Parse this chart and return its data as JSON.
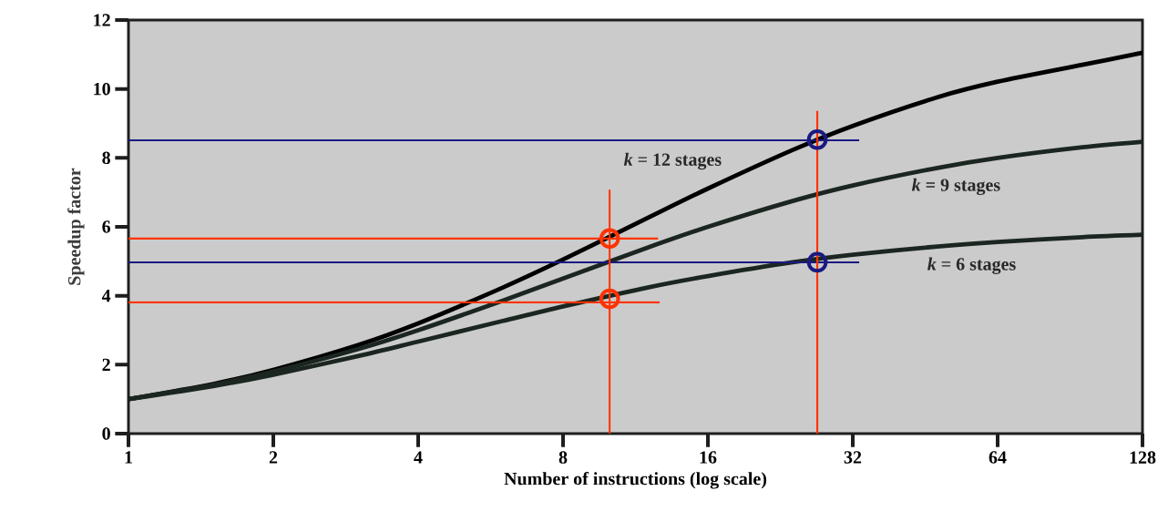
{
  "chart_data": {
    "type": "line",
    "xlabel": "Number of instructions (log scale)",
    "ylabel": "Speedup factor",
    "log": "x",
    "xlim": [
      1,
      128
    ],
    "ylim": [
      0,
      12
    ],
    "xticks": [
      1,
      2,
      4,
      8,
      16,
      32,
      64,
      128
    ],
    "yticks": [
      0,
      2,
      4,
      6,
      8,
      10,
      12
    ],
    "grid": false,
    "legend": false,
    "marker": "none",
    "line_style": "solid",
    "x": [
      1,
      1.5,
      2,
      3,
      4,
      6,
      8,
      12,
      16,
      24,
      32,
      48,
      64,
      96,
      128
    ],
    "series": [
      {
        "name": "*k* = 12 stages",
        "color": "#000000",
        "values": [
          1,
          1.44,
          1.85,
          2.57,
          3.2,
          4.24,
          5.05,
          6.26,
          7.11,
          8.23,
          8.93,
          9.76,
          10.21,
          10.7,
          11.05
        ]
      },
      {
        "name": "*k* = 9 stages",
        "color": "#1c2621",
        "values": [
          1,
          1.42,
          1.8,
          2.45,
          3,
          3.86,
          4.5,
          5.4,
          6,
          6.75,
          7.2,
          7.71,
          8,
          8.31,
          8.47
        ]
      },
      {
        "name": "*k* = 6 stages",
        "color": "#1c2621",
        "values": [
          1,
          1.38,
          1.71,
          2.25,
          2.67,
          3.27,
          3.69,
          4.24,
          4.57,
          4.97,
          5.19,
          5.43,
          5.56,
          5.7,
          5.77
        ]
      },
      {
        "color": "#ff3300",
        "x": [
          1,
          12.6
        ],
        "values": [
          5.66,
          5.66
        ]
      },
      {
        "color": "#ff3300",
        "x": [
          1,
          12.7
        ],
        "values": [
          3.81,
          3.81
        ]
      },
      {
        "color": "#1a1a80",
        "x": [
          1,
          33
        ],
        "values": [
          8.51,
          8.51
        ]
      },
      {
        "color": "#1a1a80",
        "x": [
          1,
          33
        ],
        "values": [
          4.97,
          4.97
        ]
      },
      {
        "color": "#ff3300",
        "x": [
          10,
          10
        ],
        "values": [
          0,
          7.08
        ]
      },
      {
        "color": "#ff3300",
        "x": [
          27,
          27
        ],
        "values": [
          0,
          9.36
        ]
      },
      {
        "type": "scatter",
        "marker": "circle",
        "color": "#ff3300",
        "x": [
          10,
          10
        ],
        "values": [
          5.66,
          3.91
        ]
      },
      {
        "type": "scatter",
        "marker": "circle",
        "color": "#1a1a80",
        "x": [
          27,
          27
        ],
        "values": [
          8.53,
          4.97
        ]
      }
    ]
  }
}
